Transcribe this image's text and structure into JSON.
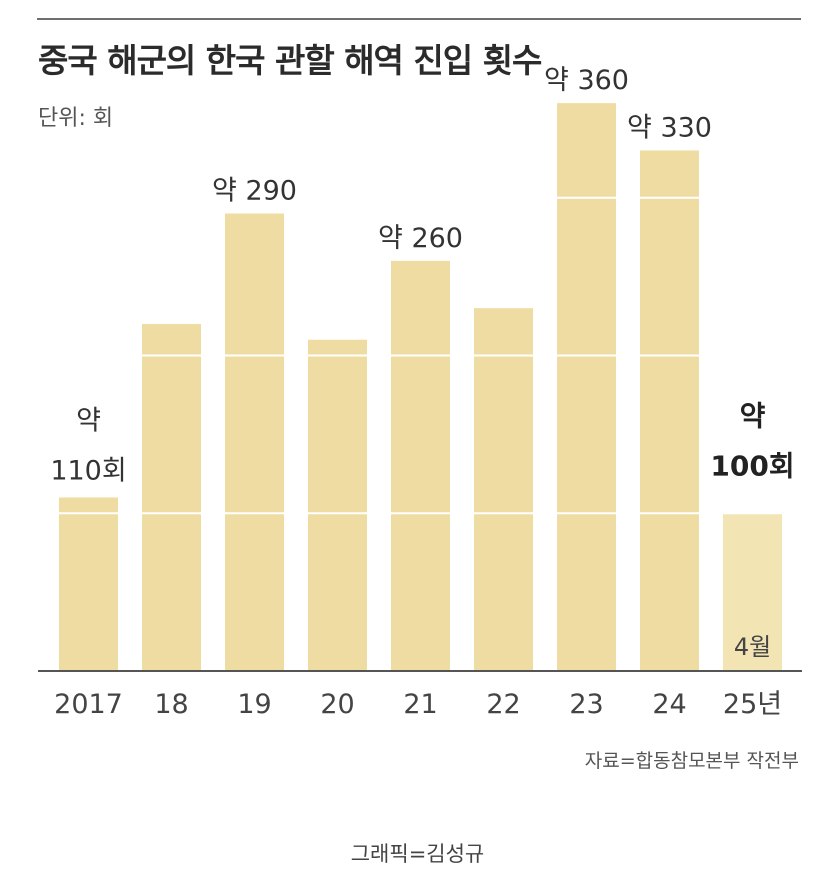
{
  "title": "중국 해군의 한국 관할 해역 진입 횟수",
  "unit_label": "단위: 회",
  "source": "자료=합동참모본부 작전부",
  "credit": "그래픽=김성규",
  "colors": {
    "bar": "#efdca2",
    "bar_highlight": "#f3e4b4",
    "baseline": "#555555",
    "text": "#333333"
  },
  "chart_data": {
    "type": "bar",
    "title": "중국 해군의 한국 관할 해역 진입 횟수",
    "ylabel": "단위: 회",
    "xlabel": "",
    "categories": [
      "2017",
      "18",
      "19",
      "20",
      "21",
      "22",
      "23",
      "24",
      "25년"
    ],
    "values": [
      110,
      220,
      290,
      210,
      260,
      230,
      360,
      330,
      100
    ],
    "ylim": [
      0,
      400
    ],
    "grid": true,
    "data_labels": [
      {
        "index": 0,
        "prefix": "약",
        "value": "110회"
      },
      {
        "index": 2,
        "prefix": "약",
        "value": "290"
      },
      {
        "index": 4,
        "prefix": "약",
        "value": "260"
      },
      {
        "index": 6,
        "prefix": "약",
        "value": "360"
      },
      {
        "index": 7,
        "prefix": "약",
        "value": "330"
      },
      {
        "index": 8,
        "prefix": "약",
        "value": "100회",
        "emphasis": true
      }
    ],
    "annotations": [
      {
        "index": 8,
        "text": "4월"
      }
    ]
  }
}
